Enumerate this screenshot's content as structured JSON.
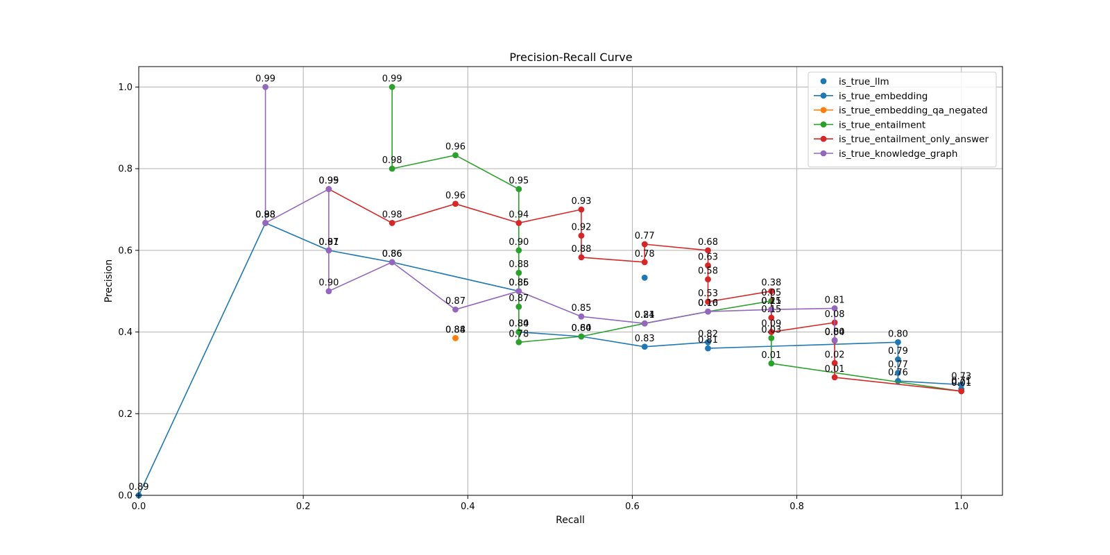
{
  "chart_data": {
    "type": "line",
    "title": "Precision-Recall Curve",
    "xlabel": "Recall",
    "ylabel": "Precision",
    "xlim": [
      0,
      1.05
    ],
    "ylim": [
      0,
      1.05
    ],
    "xticks": [
      0.0,
      0.2,
      0.4,
      0.6,
      0.8,
      1.0
    ],
    "xtick_labels": [
      "0.0",
      "0.2",
      "0.4",
      "0.6",
      "0.8",
      "1.0"
    ],
    "yticks": [
      0.0,
      0.2,
      0.4,
      0.6,
      0.8,
      1.0
    ],
    "ytick_labels": [
      "0.0",
      "0.2",
      "0.4",
      "0.6",
      "0.8",
      "1.0"
    ],
    "grid": true,
    "legend_position": "top-right",
    "series": [
      {
        "name": "is_true_llm",
        "color": "#1f77b4",
        "kind": "scatter",
        "points": [
          {
            "x": 0.615,
            "y": 0.533
          }
        ]
      },
      {
        "name": "is_true_embedding",
        "color": "#1f77b4",
        "kind": "line",
        "points": [
          {
            "x": 0.0,
            "y": 0.0,
            "label": "0.89"
          },
          {
            "x": 0.154,
            "y": 0.667,
            "label": "0.88"
          },
          {
            "x": 0.231,
            "y": 0.6,
            "label": "0.87"
          },
          {
            "x": 0.308,
            "y": 0.571,
            "label": "0.86"
          },
          {
            "x": 0.462,
            "y": 0.5,
            "label": "0.85"
          },
          {
            "x": 0.462,
            "y": 0.4,
            "label": "0.84"
          },
          {
            "x": 0.538,
            "y": 0.389,
            "label": "0.84"
          },
          {
            "x": 0.615,
            "y": 0.364,
            "label": "0.83"
          },
          {
            "x": 0.692,
            "y": 0.375,
            "label": "0.82"
          },
          {
            "x": 0.692,
            "y": 0.36,
            "label": "0.81"
          },
          {
            "x": 0.923,
            "y": 0.375,
            "label": "0.80"
          },
          {
            "x": 0.923,
            "y": 0.333,
            "label": "0.79"
          },
          {
            "x": 0.923,
            "y": 0.3,
            "label": "0.77"
          },
          {
            "x": 0.923,
            "y": 0.28,
            "label": "0.76"
          },
          {
            "x": 1.0,
            "y": 0.271,
            "label": "0.73"
          },
          {
            "x": 1.0,
            "y": 0.26,
            "label": "0.71"
          }
        ]
      },
      {
        "name": "is_true_embedding_qa_negated",
        "color": "#ff7f0e",
        "kind": "line",
        "points": [
          {
            "x": 0.385,
            "y": 0.385,
            "label": "0.88"
          },
          {
            "x": 0.385,
            "y": 0.385,
            "label": "0.84"
          }
        ]
      },
      {
        "name": "is_true_entailment",
        "color": "#2ca02c",
        "kind": "line",
        "points": [
          {
            "x": 0.308,
            "y": 1.0,
            "label": "0.99"
          },
          {
            "x": 0.308,
            "y": 0.8,
            "label": "0.98"
          },
          {
            "x": 0.385,
            "y": 0.833,
            "label": "0.96"
          },
          {
            "x": 0.462,
            "y": 0.75,
            "label": "0.95"
          },
          {
            "x": 0.462,
            "y": 0.6,
            "label": "0.90"
          },
          {
            "x": 0.462,
            "y": 0.545,
            "label": "0.88"
          },
          {
            "x": 0.462,
            "y": 0.462,
            "label": "0.87"
          },
          {
            "x": 0.462,
            "y": 0.4,
            "label": "0.80"
          },
          {
            "x": 0.462,
            "y": 0.375,
            "label": "0.78"
          },
          {
            "x": 0.538,
            "y": 0.389,
            "label": "0.60"
          },
          {
            "x": 0.615,
            "y": 0.421,
            "label": "0.21"
          },
          {
            "x": 0.692,
            "y": 0.45,
            "label": "0.10"
          },
          {
            "x": 0.769,
            "y": 0.476,
            "label": "0.05"
          },
          {
            "x": 0.769,
            "y": 0.385,
            "label": "0.03"
          },
          {
            "x": 0.769,
            "y": 0.323,
            "label": "0.01"
          },
          {
            "x": 1.0,
            "y": 0.255,
            "label": "0.01"
          }
        ]
      },
      {
        "name": "is_true_entailment_only_answer",
        "color": "#d62728",
        "kind": "line",
        "points": [
          {
            "x": 0.231,
            "y": 0.75,
            "label": "0.99"
          },
          {
            "x": 0.308,
            "y": 0.667,
            "label": "0.98"
          },
          {
            "x": 0.385,
            "y": 0.714,
            "label": "0.96"
          },
          {
            "x": 0.462,
            "y": 0.667,
            "label": "0.94"
          },
          {
            "x": 0.538,
            "y": 0.7,
            "label": "0.93"
          },
          {
            "x": 0.538,
            "y": 0.636,
            "label": "0.92"
          },
          {
            "x": 0.538,
            "y": 0.583,
            "label": "0.88"
          },
          {
            "x": 0.615,
            "y": 0.571,
            "label": "0.78"
          },
          {
            "x": 0.615,
            "y": 0.615,
            "label": "0.77"
          },
          {
            "x": 0.692,
            "y": 0.6,
            "label": "0.68"
          },
          {
            "x": 0.692,
            "y": 0.563,
            "label": "0.63"
          },
          {
            "x": 0.692,
            "y": 0.529,
            "label": "0.58"
          },
          {
            "x": 0.692,
            "y": 0.474,
            "label": "0.53"
          },
          {
            "x": 0.769,
            "y": 0.5,
            "label": "0.38"
          },
          {
            "x": 0.769,
            "y": 0.455,
            "label": "0.21"
          },
          {
            "x": 0.769,
            "y": 0.435,
            "label": "0.15"
          },
          {
            "x": 0.769,
            "y": 0.4,
            "label": "0.09"
          },
          {
            "x": 0.846,
            "y": 0.423,
            "label": "0.08"
          },
          {
            "x": 0.846,
            "y": 0.379,
            "label": "0.04"
          },
          {
            "x": 0.846,
            "y": 0.324,
            "label": "0.02"
          },
          {
            "x": 0.846,
            "y": 0.289,
            "label": "0.01"
          },
          {
            "x": 1.0,
            "y": 0.255,
            "label": "0.01"
          }
        ]
      },
      {
        "name": "is_true_knowledge_graph",
        "color": "#9467bd",
        "kind": "line",
        "points": [
          {
            "x": 0.154,
            "y": 1.0,
            "label": "0.99"
          },
          {
            "x": 0.154,
            "y": 0.667,
            "label": "0.98"
          },
          {
            "x": 0.231,
            "y": 0.75,
            "label": "0.95"
          },
          {
            "x": 0.231,
            "y": 0.6,
            "label": "0.91"
          },
          {
            "x": 0.231,
            "y": 0.5,
            "label": "0.90"
          },
          {
            "x": 0.308,
            "y": 0.571,
            "label": "0.86"
          },
          {
            "x": 0.385,
            "y": 0.455,
            "label": "0.87"
          },
          {
            "x": 0.462,
            "y": 0.5,
            "label": "0.86"
          },
          {
            "x": 0.538,
            "y": 0.438,
            "label": "0.85"
          },
          {
            "x": 0.615,
            "y": 0.421,
            "label": "0.84"
          },
          {
            "x": 0.692,
            "y": 0.45,
            "label": "0.16"
          },
          {
            "x": 0.769,
            "y": 0.455,
            "label": "0.15"
          },
          {
            "x": 0.846,
            "y": 0.458,
            "label": "0.81"
          },
          {
            "x": 0.846,
            "y": 0.38,
            "label": "0.80"
          }
        ]
      }
    ]
  }
}
